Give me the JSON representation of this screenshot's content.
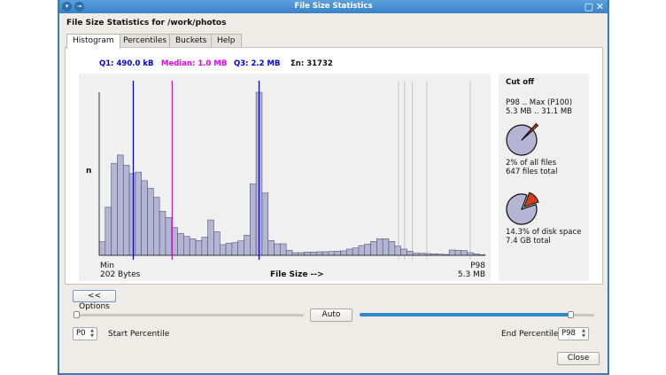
{
  "window": {
    "title": "File Size Statistics"
  },
  "heading": "File Size Statistics for /work/photos",
  "tabs": [
    {
      "label": "Histogram",
      "active": true
    },
    {
      "label": "Percentiles"
    },
    {
      "label": "Buckets"
    },
    {
      "label": "Help"
    }
  ],
  "stats": {
    "q1": "Q1: 490.0 kB",
    "median": "Median: 1.0 MB",
    "q3": "Q3: 2.2 MB",
    "n": "Σn: 31732",
    "q1_color": "#0000ee",
    "median_color": "#ee00ee",
    "q3_color": "#0000ee"
  },
  "chart_data": {
    "type": "bar",
    "ylabel": "n",
    "xlabel": "File Size  -->",
    "x_min_label": "Min",
    "x_min_value": "202 Bytes",
    "x_max_label": "P98",
    "x_max_value": "5.3 MB",
    "bar_color": "#b4b4d4",
    "values": [
      46,
      163,
      312,
      340,
      305,
      277,
      282,
      253,
      227,
      197,
      149,
      128,
      94,
      74,
      64,
      56,
      50,
      61,
      120,
      80,
      36,
      41,
      43,
      49,
      68,
      242,
      553,
      211,
      50,
      39,
      39,
      17,
      9,
      9,
      11,
      11,
      12,
      12,
      13,
      14,
      15,
      21,
      25,
      33,
      38,
      47,
      56,
      56,
      47,
      31,
      21,
      14,
      7,
      7,
      6,
      5,
      4,
      3,
      18,
      17,
      16,
      9,
      5,
      2
    ],
    "markers": [
      {
        "name": "Q1",
        "color": "#0000ee"
      },
      {
        "name": "Median",
        "color": "#ee00ee"
      },
      {
        "name": "Q3",
        "color": "#0000ee"
      }
    ]
  },
  "cutoff": {
    "title": "Cut off",
    "range_label": "P98 .. Max (P100)",
    "range_value": "5.3 MB .. 31.1 MB",
    "files_pct_label": "2% of all files",
    "files_total": "647 files total",
    "files_fraction": 0.02,
    "disk_pct_label": "14.3% of disk space",
    "disk_total": "7.4 GB total",
    "disk_fraction": 0.143,
    "pie_color": "#b4b4d4",
    "wedge_color": "#d23c1e"
  },
  "controls": {
    "options_label": "<< Options",
    "auto_label": "Auto",
    "start_value": "P0",
    "start_label": "Start Percentile",
    "end_label": "End Percentile",
    "end_value": "P98",
    "start_percentile": 0,
    "end_percentile": 98,
    "accent": "#2c86d0",
    "close_label": "Close"
  }
}
